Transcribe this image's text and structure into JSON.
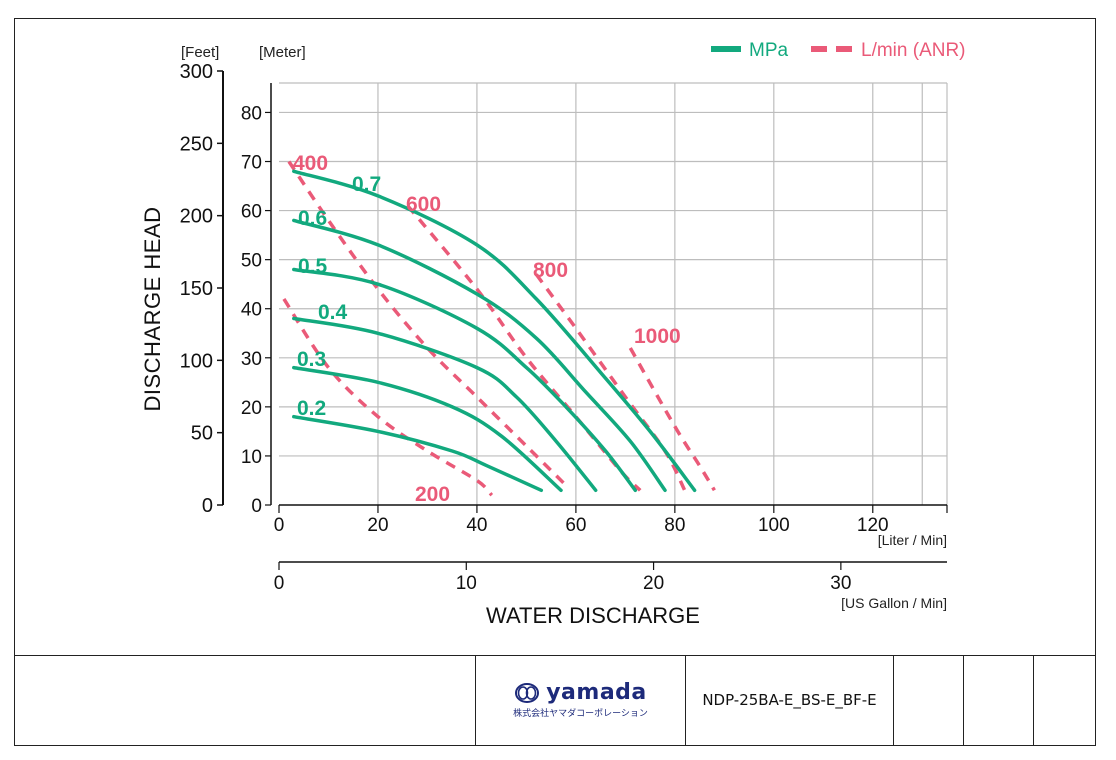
{
  "chart_data": {
    "type": "line",
    "ylabel": "DISCHARGE HEAD",
    "xlabel": "WATER DISCHARGE",
    "left_axis_unit": "[Feet]",
    "right_axis_unit": "[Meter]",
    "x_unit_primary": "[Liter / Min]",
    "x_unit_secondary": "[US Gallon / Min]",
    "xlim_liter": [
      0,
      135
    ],
    "ylim_meter": [
      0,
      86
    ],
    "ylim_feet": [
      0,
      300
    ],
    "grid": true,
    "legend_position": "top-right",
    "x_ticks_liter": [
      "0",
      "20",
      "40",
      "60",
      "80",
      "100",
      "120"
    ],
    "x_ticks_gallon": [
      "0",
      "10",
      "20",
      "30"
    ],
    "y_ticks_meter": [
      "0",
      "10",
      "20",
      "30",
      "40",
      "50",
      "60",
      "70",
      "80"
    ],
    "y_ticks_feet": [
      "0",
      "50",
      "100",
      "150",
      "200",
      "250",
      "300"
    ],
    "legend": [
      {
        "label": "MPa",
        "style": "solid",
        "color": "#12a97e"
      },
      {
        "label": "L/min (ANR)",
        "style": "dashed",
        "color": "#ea5a78"
      }
    ],
    "series_pressure": [
      {
        "name": "0.7",
        "color": "#12a97e",
        "points": [
          [
            3,
            68
          ],
          [
            20,
            63
          ],
          [
            40,
            53
          ],
          [
            52,
            42
          ],
          [
            65,
            27
          ],
          [
            75,
            15
          ],
          [
            84,
            3
          ]
        ]
      },
      {
        "name": "0.6",
        "color": "#12a97e",
        "points": [
          [
            3,
            58
          ],
          [
            20,
            53
          ],
          [
            40,
            43
          ],
          [
            52,
            34
          ],
          [
            62,
            23
          ],
          [
            71,
            13
          ],
          [
            78,
            3
          ]
        ]
      },
      {
        "name": "0.5",
        "color": "#12a97e",
        "points": [
          [
            3,
            48
          ],
          [
            20,
            45
          ],
          [
            40,
            36
          ],
          [
            50,
            28
          ],
          [
            58,
            20
          ],
          [
            66,
            11
          ],
          [
            72,
            3
          ]
        ]
      },
      {
        "name": "0.4",
        "color": "#12a97e",
        "points": [
          [
            3,
            38
          ],
          [
            20,
            35
          ],
          [
            40,
            28
          ],
          [
            48,
            22
          ],
          [
            56,
            13
          ],
          [
            64,
            3
          ]
        ]
      },
      {
        "name": "0.3",
        "color": "#12a97e",
        "points": [
          [
            3,
            28
          ],
          [
            20,
            25
          ],
          [
            35,
            20
          ],
          [
            45,
            14
          ],
          [
            57,
            3
          ]
        ]
      },
      {
        "name": "0.2",
        "color": "#12a97e",
        "points": [
          [
            3,
            18
          ],
          [
            20,
            15
          ],
          [
            35,
            11
          ],
          [
            42,
            8
          ],
          [
            53,
            3
          ]
        ]
      }
    ],
    "series_air": [
      {
        "name": "200",
        "color": "#ea5a78",
        "points": [
          [
            1,
            42
          ],
          [
            10,
            28
          ],
          [
            20,
            18
          ],
          [
            30,
            11
          ],
          [
            40,
            5
          ],
          [
            43,
            2
          ]
        ]
      },
      {
        "name": "400",
        "color": "#ea5a78",
        "points": [
          [
            2,
            70
          ],
          [
            10,
            58
          ],
          [
            20,
            44
          ],
          [
            30,
            32
          ],
          [
            40,
            22
          ],
          [
            50,
            12
          ],
          [
            58,
            4
          ]
        ]
      },
      {
        "name": "600",
        "color": "#ea5a78",
        "points": [
          [
            26,
            61
          ],
          [
            40,
            44
          ],
          [
            50,
            30
          ],
          [
            60,
            18
          ],
          [
            69,
            7
          ],
          [
            73,
            3
          ]
        ]
      },
      {
        "name": "800",
        "color": "#ea5a78",
        "points": [
          [
            52,
            47
          ],
          [
            60,
            36
          ],
          [
            70,
            22
          ],
          [
            78,
            11
          ],
          [
            82,
            3
          ]
        ]
      },
      {
        "name": "1000",
        "color": "#ea5a78",
        "points": [
          [
            71,
            32
          ],
          [
            80,
            16
          ],
          [
            85,
            8
          ],
          [
            88,
            3
          ]
        ]
      }
    ]
  },
  "footer": {
    "brand": "yamada",
    "brand_sub": "株式会社ヤマダコーポレーション",
    "doc_number": "NDP-25BA-E_BS-E_BF-E"
  }
}
